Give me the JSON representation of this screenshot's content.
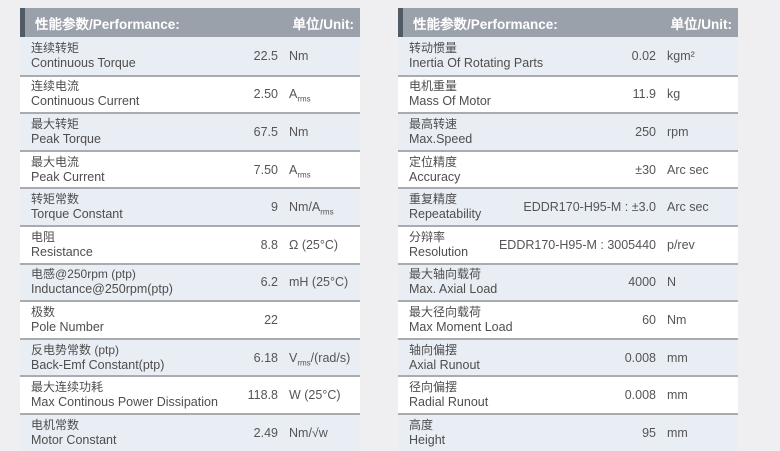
{
  "tables": [
    {
      "header": {
        "title": "性能参数/Performance:",
        "unit": "单位/Unit:"
      },
      "rows": [
        {
          "zh": "连续转矩",
          "en": "Continuous Torque",
          "value": "22.5",
          "unit": {
            "p": "Nm",
            "s": "",
            "t": ""
          }
        },
        {
          "zh": "连续电流",
          "en": "Continuous Current",
          "value": "2.50",
          "unit": {
            "p": "A",
            "s": "rms",
            "t": ""
          }
        },
        {
          "zh": "最大转矩",
          "en": "Peak Torque",
          "value": "67.5",
          "unit": {
            "p": "Nm",
            "s": "",
            "t": ""
          }
        },
        {
          "zh": "最大电流",
          "en": "Peak Current",
          "value": "7.50",
          "unit": {
            "p": "A",
            "s": "rms",
            "t": ""
          }
        },
        {
          "zh": "转矩常数",
          "en": "Torque Constant",
          "value": "9",
          "unit": {
            "p": "Nm/A",
            "s": "rms",
            "t": ""
          }
        },
        {
          "zh": "电阻",
          "en": "Resistance",
          "value": "8.8",
          "unit": {
            "p": "Ω (25°C)",
            "s": "",
            "t": ""
          }
        },
        {
          "zh": "电感@250rpm (ptp)",
          "en": "Inductance@250rpm(ptp)",
          "value": "6.2",
          "unit": {
            "p": "mH (25°C)",
            "s": "",
            "t": ""
          }
        },
        {
          "zh": "极数",
          "en": "Pole Number",
          "value": "22",
          "unit": {
            "p": "",
            "s": "",
            "t": ""
          }
        },
        {
          "zh": "反电势常数 (ptp)",
          "en": "Back-Emf Constant(ptp)",
          "value": "6.18",
          "unit": {
            "p": "V",
            "s": "rms",
            "t": "/(rad/s)"
          }
        },
        {
          "zh": "最大连续功耗",
          "en": "Max Continous Power Dissipation",
          "value": "118.8",
          "unit": {
            "p": "W (25°C)",
            "s": "",
            "t": ""
          }
        },
        {
          "zh": "电机常数",
          "en": "Motor Constant",
          "value": "2.49",
          "unit": {
            "p": "Nm/√w",
            "s": "",
            "t": ""
          }
        }
      ]
    },
    {
      "header": {
        "title": "性能参数/Performance:",
        "unit": "单位/Unit:"
      },
      "rows": [
        {
          "zh": "转动惯量",
          "en": "Inertia Of Rotating Parts",
          "value": "0.02",
          "unit": {
            "p": "kgm²",
            "s": "",
            "t": ""
          }
        },
        {
          "zh": "电机重量",
          "en": "Mass Of Motor",
          "value": "11.9",
          "unit": {
            "p": "kg",
            "s": "",
            "t": ""
          }
        },
        {
          "zh": "最高转速",
          "en": "Max.Speed",
          "value": "250",
          "unit": {
            "p": "rpm",
            "s": "",
            "t": ""
          }
        },
        {
          "zh": "定位精度",
          "en": "Accuracy",
          "value": "±30",
          "unit": {
            "p": "Arc sec",
            "s": "",
            "t": ""
          }
        },
        {
          "zh": "重复精度",
          "en": "Repeatability",
          "value": "EDDR170-H95-M : ±3.0",
          "unit": {
            "p": "Arc sec",
            "s": "",
            "t": ""
          }
        },
        {
          "zh": "分辩率",
          "en": "Resolution",
          "value": "EDDR170-H95-M : 3005440",
          "unit": {
            "p": "p/rev",
            "s": "",
            "t": ""
          }
        },
        {
          "zh": "最大轴向载荷",
          "en": "Max. Axial Load",
          "value": "4000",
          "unit": {
            "p": "N",
            "s": "",
            "t": ""
          }
        },
        {
          "zh": "最大径向载荷",
          "en": "Max Moment Load",
          "value": "60",
          "unit": {
            "p": "Nm",
            "s": "",
            "t": ""
          }
        },
        {
          "zh": "轴向偏摆",
          "en": "Axial Runout",
          "value": "0.008",
          "unit": {
            "p": "mm",
            "s": "",
            "t": ""
          }
        },
        {
          "zh": "径向偏摆",
          "en": "Radial Runout",
          "value": "0.008",
          "unit": {
            "p": "mm",
            "s": "",
            "t": ""
          }
        },
        {
          "zh": "高度",
          "en": "Height",
          "value": "95",
          "unit": {
            "p": "mm",
            "s": "",
            "t": ""
          }
        }
      ]
    }
  ],
  "colors": {
    "page_bg": "#efeff1",
    "header_bg": "#9aa1ab",
    "header_accent": "#505b66",
    "row_light": "#e9edf4",
    "row_white": "#ffffff",
    "separator": "#a9abae",
    "text": "#4e4e4e"
  }
}
